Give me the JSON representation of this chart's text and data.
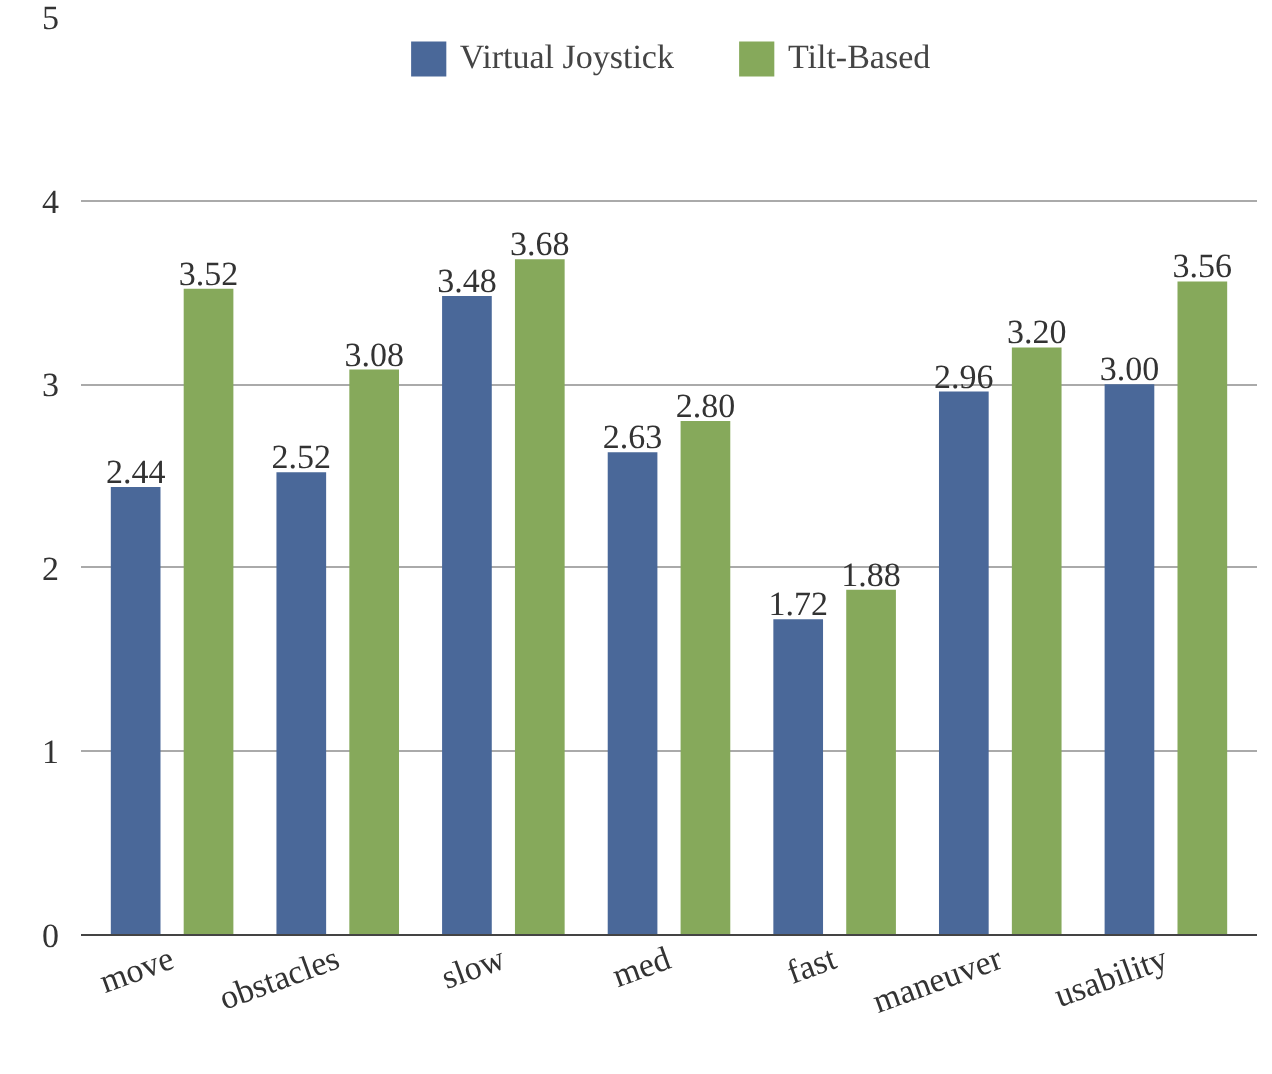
{
  "chart_data": {
    "type": "bar",
    "categories": [
      "move",
      "obstacles",
      "slow",
      "med",
      "fast",
      "maneuver",
      "usability"
    ],
    "series": [
      {
        "name": "Virtual Joystick",
        "color": "#4a6899",
        "values": [
          2.44,
          2.52,
          3.48,
          2.63,
          1.72,
          2.96,
          3.0
        ],
        "value_labels": [
          "2.44",
          "2.52",
          "3.48",
          "2.63",
          "1.72",
          "2.96",
          "3.00"
        ]
      },
      {
        "name": "Tilt-Based",
        "color": "#86a95b",
        "values": [
          3.52,
          3.08,
          3.68,
          2.8,
          1.88,
          3.2,
          3.56
        ],
        "value_labels": [
          "3.52",
          "3.08",
          "3.68",
          "2.80",
          "1.88",
          "3.20",
          "3.56"
        ]
      }
    ],
    "ylim": [
      0,
      5
    ],
    "yticks": [
      0,
      1,
      2,
      3,
      4,
      5
    ],
    "grid": "y",
    "legend": "top"
  }
}
